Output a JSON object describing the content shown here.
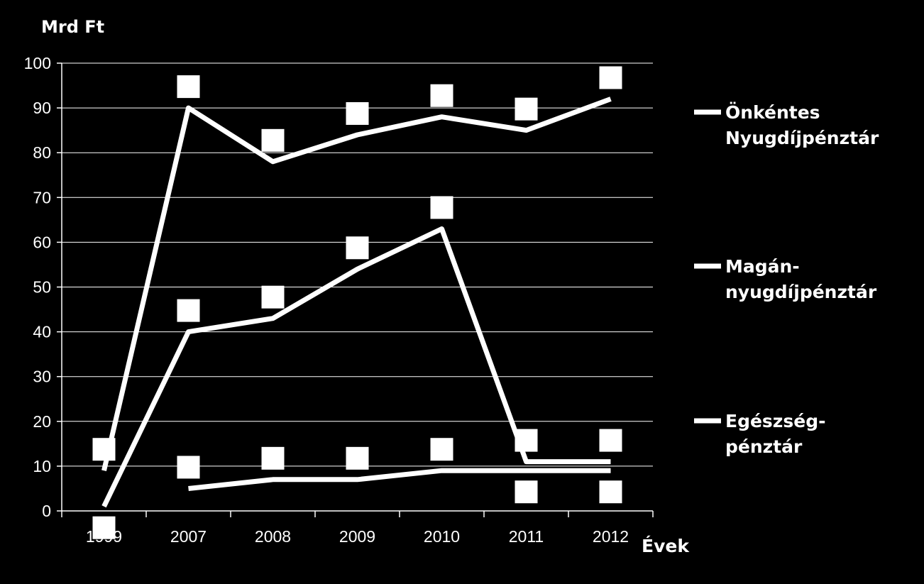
{
  "chart_data": {
    "type": "line",
    "ylabel": "Mrd Ft",
    "xlabel": "Évek",
    "categories": [
      "1999",
      "2007",
      "2008",
      "2009",
      "2010",
      "2011",
      "2012"
    ],
    "ylim": [
      0,
      100
    ],
    "yticks": [
      0,
      10,
      20,
      30,
      40,
      50,
      60,
      70,
      80,
      90,
      100
    ],
    "grid": true,
    "legend_position": "right",
    "line_color": "#ffffff",
    "background": "#000000",
    "series": [
      {
        "name_lines": [
          "Önkéntes",
          "Nyugdíjpénztár"
        ],
        "values": [
          9,
          90,
          78,
          84,
          88,
          85,
          92
        ]
      },
      {
        "name_lines": [
          "Magán-",
          "nyugdíjpénztár"
        ],
        "values": [
          1,
          40,
          43,
          54,
          63,
          11,
          11
        ]
      },
      {
        "name_lines": [
          "Egészség-",
          "pénztár"
        ],
        "values": [
          null,
          5,
          7,
          7,
          9,
          9,
          9
        ]
      }
    ]
  }
}
